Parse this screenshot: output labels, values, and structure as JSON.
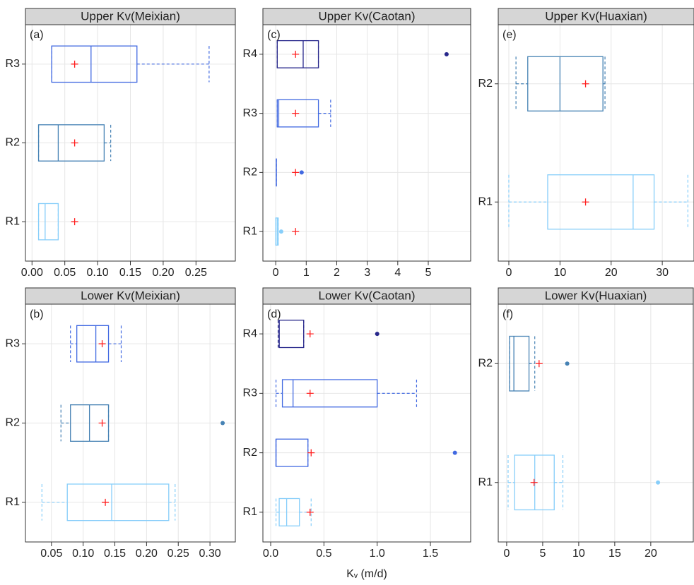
{
  "chart_data": [
    {
      "type": "box",
      "title": "Upper Kv(Meixian)",
      "panel_label": "(a)",
      "categories": [
        "R1",
        "R2",
        "R3"
      ],
      "boxes": [
        {
          "color": "#87cefa",
          "min": 0.01,
          "q1": 0.01,
          "median": 0.02,
          "q3": 0.04,
          "max": 0.04,
          "mean": 0.065
        },
        {
          "color": "#4682b4",
          "min": 0.01,
          "q1": 0.01,
          "median": 0.04,
          "q3": 0.11,
          "max": 0.12,
          "mean": 0.065
        },
        {
          "color": "#4169e1",
          "min": 0.03,
          "q1": 0.03,
          "median": 0.09,
          "q3": 0.16,
          "max": 0.27,
          "mean": 0.065
        }
      ],
      "xlim": [
        -0.01,
        0.31
      ],
      "xticks": [
        {
          "value": 0,
          "label": "0.00"
        },
        0.05,
        {
          "value": 0.1,
          "label": "0.10"
        },
        0.15,
        {
          "value": 0.2,
          "label": "0.20"
        },
        0.25
      ],
      "grid": true
    },
    {
      "type": "box",
      "title": "Lower Kv(Meixian)",
      "panel_label": "(b)",
      "categories": [
        "R1",
        "R2",
        "R3"
      ],
      "boxes": [
        {
          "color": "#87cefa",
          "min": 0.035,
          "q1": 0.075,
          "median": 0.145,
          "q3": 0.235,
          "max": 0.245,
          "mean": 0.135
        },
        {
          "color": "#4682b4",
          "min": 0.065,
          "q1": 0.08,
          "median": 0.11,
          "q3": 0.14,
          "max": 0.14,
          "mean": 0.13,
          "outliers": [
            0.32
          ]
        },
        {
          "color": "#4169e1",
          "min": 0.08,
          "q1": 0.09,
          "median": 0.12,
          "q3": 0.14,
          "max": 0.16,
          "mean": 0.13
        }
      ],
      "xlim": [
        0.009,
        0.34
      ],
      "xticks": [
        0.05,
        {
          "value": 0.1,
          "label": "0.10"
        },
        0.15,
        {
          "value": 0.2,
          "label": "0.20"
        },
        0.25,
        {
          "value": 0.3,
          "label": "0.30"
        }
      ],
      "grid": true
    },
    {
      "type": "box",
      "title": "Upper Kv(Caotan)",
      "panel_label": "(c)",
      "categories": [
        "R1",
        "R2",
        "R3",
        "R4"
      ],
      "boxes": [
        {
          "color": "#87cefa",
          "min": 0,
          "q1": 0,
          "median": 0.05,
          "q3": 0.08,
          "max": 0.08,
          "mean": 0.65,
          "outliers": [
            0.18
          ]
        },
        {
          "color": "#4169e1",
          "min": 0.02,
          "q1": 0.02,
          "median": 0.02,
          "q3": 0.02,
          "max": 0.02,
          "mean": 0.65,
          "outliers": [
            0.85
          ]
        },
        {
          "color": "#4169e1",
          "min": 0.05,
          "q1": 0.05,
          "median": 0.1,
          "q3": 1.4,
          "max": 1.8,
          "mean": 0.65
        },
        {
          "color": "#27278b",
          "min": 0.05,
          "q1": 0.05,
          "median": 0.9,
          "q3": 1.4,
          "max": 1.4,
          "mean": 0.65,
          "outliers": [
            5.6
          ]
        }
      ],
      "xlim": [
        -0.42,
        6.39
      ],
      "xticks": [
        0,
        1,
        2,
        3,
        4,
        5
      ],
      "grid": true
    },
    {
      "type": "box",
      "title": "Lower Kv(Caotan)",
      "panel_label": "(d)",
      "categories": [
        "R1",
        "R2",
        "R3",
        "R4"
      ],
      "xlabel": "Kᵥ (m/d)",
      "boxes": [
        {
          "color": "#87cefa",
          "min": 0.05,
          "q1": 0.08,
          "median": 0.15,
          "q3": 0.27,
          "max": 0.38,
          "mean": 0.37
        },
        {
          "color": "#4169e1",
          "min": 0.05,
          "q1": 0.05,
          "median": 0.05,
          "q3": 0.35,
          "max": 0.35,
          "mean": 0.38,
          "outliers": [
            1.73
          ]
        },
        {
          "color": "#4169e1",
          "min": 0.05,
          "q1": 0.11,
          "median": 0.21,
          "q3": 1.0,
          "max": 1.37,
          "mean": 0.37
        },
        {
          "color": "#27278b",
          "min": 0.07,
          "q1": 0.08,
          "median": 0.08,
          "q3": 0.31,
          "max": 0.31,
          "mean": 0.37,
          "outliers": [
            1.0
          ]
        }
      ],
      "xlim": [
        -0.073,
        1.878
      ],
      "xticks": [
        {
          "value": 0,
          "label": "0.0"
        },
        0.5,
        {
          "value": 1,
          "label": "1.0"
        },
        1.5
      ],
      "grid": true
    },
    {
      "type": "box",
      "title": "Upper Kv(Huaxian)",
      "panel_label": "(e)",
      "categories": [
        "R1",
        "R2"
      ],
      "boxes": [
        {
          "color": "#87cefa",
          "min": 0,
          "q1": 7.6,
          "median": 24.3,
          "q3": 28.4,
          "max": 35,
          "mean": 15
        },
        {
          "color": "#4682b4",
          "min": 1.4,
          "q1": 3.7,
          "median": 10,
          "q3": 18.4,
          "max": 18.8,
          "mean": 15
        }
      ],
      "xlim": [
        -2.07,
        36.2
      ],
      "xticks": [
        0,
        10,
        20,
        30
      ],
      "grid": true
    },
    {
      "type": "box",
      "title": "Lower Kv(Huaxian)",
      "panel_label": "(f)",
      "categories": [
        "R1",
        "R2"
      ],
      "boxes": [
        {
          "color": "#87cefa",
          "min": 0.2,
          "q1": 1.1,
          "median": 3.9,
          "q3": 6.6,
          "max": 7.8,
          "mean": 3.8,
          "outliers": [
            21
          ]
        },
        {
          "color": "#4682b4",
          "min": 0.4,
          "q1": 0.4,
          "median": 1,
          "q3": 3.1,
          "max": 3.9,
          "mean": 4.5,
          "outliers": [
            8.4
          ]
        }
      ],
      "xlim": [
        -1.17,
        25.9
      ],
      "xticks": [
        0,
        5,
        10,
        15,
        20
      ],
      "grid": true
    }
  ]
}
